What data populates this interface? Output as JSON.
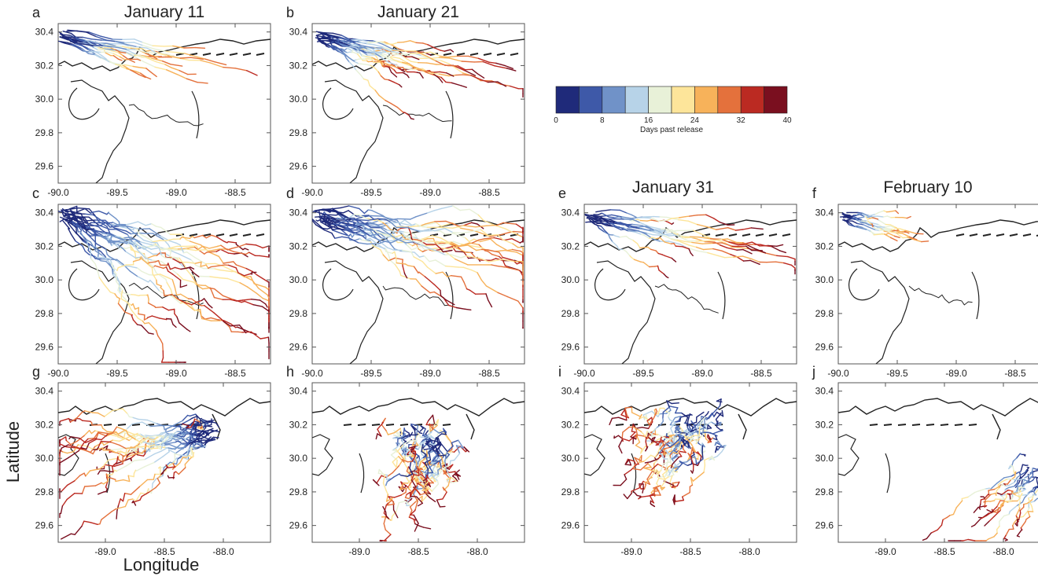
{
  "figure": {
    "ylabel": "Latitude",
    "xlabel": "Longitude",
    "column_titles": [
      "January 11",
      "January 21",
      "January 31",
      "February 10"
    ],
    "colorbar": {
      "label": "Days past release",
      "ticks": [
        "0",
        "8",
        "16",
        "24",
        "32",
        "40"
      ],
      "colors": [
        "#1f2a7a",
        "#3e59a8",
        "#7092c8",
        "#b7d3e8",
        "#e8f1d8",
        "#fde59a",
        "#f7b25a",
        "#e4713c",
        "#bb2a22",
        "#7a0f1f"
      ]
    }
  },
  "chart_data": [
    {
      "panel": "a",
      "type": "line",
      "title": "January 11",
      "xticks": [
        "-90.0",
        "-89.5",
        "-89.0",
        "-88.5"
      ],
      "yticks": [
        "30.4",
        "30.2",
        "30.0",
        "29.8",
        "29.6"
      ],
      "xlim": [
        -90.0,
        -88.2
      ],
      "ylim": [
        29.5,
        30.45
      ]
    },
    {
      "panel": "b",
      "type": "line",
      "title": "January 21",
      "xticks": [
        "-90.0",
        "-89.5",
        "-89.0",
        "-88.5"
      ],
      "yticks": [
        "30.4",
        "30.2",
        "30.0",
        "29.8",
        "29.6"
      ],
      "xlim": [
        -90.0,
        -88.2
      ],
      "ylim": [
        29.5,
        30.45
      ]
    },
    {
      "panel": "c",
      "type": "line",
      "xticks": [
        "-90.0",
        "-89.5",
        "-89.0",
        "-88.5"
      ],
      "yticks": [
        "30.4",
        "30.2",
        "30.0",
        "29.8",
        "29.6"
      ],
      "xlim": [
        -90.0,
        -88.2
      ],
      "ylim": [
        29.5,
        30.45
      ]
    },
    {
      "panel": "d",
      "type": "line",
      "xticks": [
        "-90.0",
        "-89.5",
        "-89.0",
        "-88.5"
      ],
      "yticks": [
        "30.4",
        "30.2",
        "30.0",
        "29.8",
        "29.6"
      ],
      "xlim": [
        -90.0,
        -88.2
      ],
      "ylim": [
        29.5,
        30.45
      ]
    },
    {
      "panel": "e",
      "type": "line",
      "title": "January 31",
      "xticks": [
        "-90.0",
        "-89.5",
        "-89.0",
        "-88.5"
      ],
      "yticks": [
        "30.4",
        "30.2",
        "30.0",
        "29.8",
        "29.6"
      ],
      "xlim": [
        -90.0,
        -88.2
      ],
      "ylim": [
        29.5,
        30.45
      ]
    },
    {
      "panel": "f",
      "type": "line",
      "title": "February 10",
      "xticks": [
        "-90.0",
        "-89.5",
        "-89.0",
        "-88.5"
      ],
      "yticks": [
        "30.4",
        "30.2",
        "30.0",
        "29.8",
        "29.6"
      ],
      "xlim": [
        -90.0,
        -88.2
      ],
      "ylim": [
        29.5,
        30.45
      ]
    },
    {
      "panel": "g",
      "type": "line",
      "xticks": [
        "-89.0",
        "-88.5",
        "-88.0"
      ],
      "yticks": [
        "30.4",
        "30.2",
        "30.0",
        "29.8",
        "29.6"
      ],
      "xlim": [
        -89.4,
        -87.6
      ],
      "ylim": [
        29.5,
        30.45
      ]
    },
    {
      "panel": "h",
      "type": "line",
      "xticks": [
        "-89.0",
        "-88.5",
        "-88.0"
      ],
      "yticks": [
        "30.4",
        "30.2",
        "30.0",
        "29.8",
        "29.6"
      ],
      "xlim": [
        -89.4,
        -87.6
      ],
      "ylim": [
        29.5,
        30.45
      ]
    },
    {
      "panel": "i",
      "type": "line",
      "xticks": [
        "-89.0",
        "-88.5",
        "-88.0"
      ],
      "yticks": [
        "30.4",
        "30.2",
        "30.0",
        "29.8",
        "29.6"
      ],
      "xlim": [
        -89.4,
        -87.6
      ],
      "ylim": [
        29.5,
        30.45
      ]
    },
    {
      "panel": "j",
      "type": "line",
      "xticks": [
        "-89.0",
        "-88.5",
        "-88.0"
      ],
      "yticks": [
        "30.4",
        "30.2",
        "30.0",
        "29.8",
        "29.6"
      ],
      "xlim": [
        -89.4,
        -87.6
      ],
      "ylim": [
        29.5,
        30.45
      ]
    }
  ]
}
